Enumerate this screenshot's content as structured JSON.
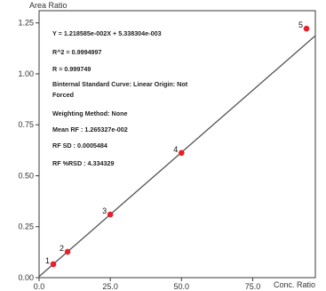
{
  "chart_data": {
    "type": "scatter",
    "ylabel": "Area Ratio",
    "xlabel": "Conc. Ratio",
    "xlim": [
      0,
      97
    ],
    "ylim": [
      0,
      1.31
    ],
    "x_ticks": [
      0,
      25,
      50,
      75
    ],
    "x_tick_labels": [
      "0.0",
      "25.0",
      "50.0",
      "75.0"
    ],
    "y_ticks": [
      0,
      0.25,
      0.5,
      0.75,
      1.0,
      1.25
    ],
    "y_tick_labels": [
      "0.00",
      "0.25",
      "0.50",
      "0.75",
      "1.00",
      "1.25"
    ],
    "grid": false,
    "points": [
      {
        "label": "1",
        "x": 5,
        "y": 0.066
      },
      {
        "label": "2",
        "x": 10,
        "y": 0.127
      },
      {
        "label": "3",
        "x": 25,
        "y": 0.31
      },
      {
        "label": "4",
        "x": 50,
        "y": 0.612
      },
      {
        "label": "5",
        "x": 100,
        "y": 1.222
      }
    ],
    "fit_line": {
      "slope": 0.01218585,
      "intercept": 0.005338304,
      "x_range": [
        0,
        97
      ]
    },
    "point_color": "#e8202a",
    "line_color": "#555555",
    "annotations": [
      "Y = 1.218585e-002X + 5.338304e-003",
      "R^2 = 0.9994997",
      "R = 0.999749",
      "Binternal Standard Curve: Linear Origin: Not",
      "Forced",
      "Weighting Method: None",
      "Mean RF :  1.265327e-002",
      "RF SD : 0.0005484",
      "RF %RSD : 4.334329"
    ]
  }
}
